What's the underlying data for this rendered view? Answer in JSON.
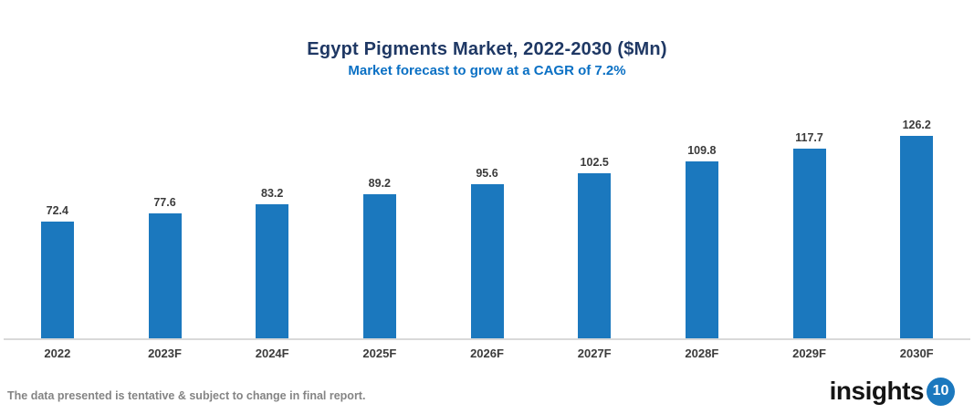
{
  "header": {
    "title": "Egypt Pigments Market, 2022-2030 ($Mn)",
    "subtitle": "Market forecast to grow at a CAGR of 7.2%"
  },
  "chart_data": {
    "type": "bar",
    "categories": [
      "2022",
      "2023F",
      "2024F",
      "2025F",
      "2026F",
      "2027F",
      "2028F",
      "2029F",
      "2030F"
    ],
    "values": [
      72.4,
      77.6,
      83.2,
      89.2,
      95.6,
      102.5,
      109.8,
      117.7,
      126.2
    ],
    "title": "Egypt Pigments Market, 2022-2030 ($Mn)",
    "subtitle": "Market forecast to grow at a CAGR of 7.2%",
    "xlabel": "",
    "ylabel": "",
    "ylim": [
      0,
      130
    ],
    "grid": false,
    "legend": false,
    "data_labels": true,
    "cagr": "7.2%"
  },
  "footer": {
    "disclaimer": "The data presented is tentative & subject to change in final report."
  },
  "logo": {
    "text": "insights",
    "badge": "10"
  },
  "colors": {
    "title": "#1F3864",
    "subtitle": "#0A70C4",
    "bar": "#1B78BE",
    "axis_line": "#D9D9D9",
    "data_label": "#3B3B3B",
    "footer_text": "#848484",
    "logo_badge": "#1B78BE",
    "background": "#FFFFFF"
  }
}
